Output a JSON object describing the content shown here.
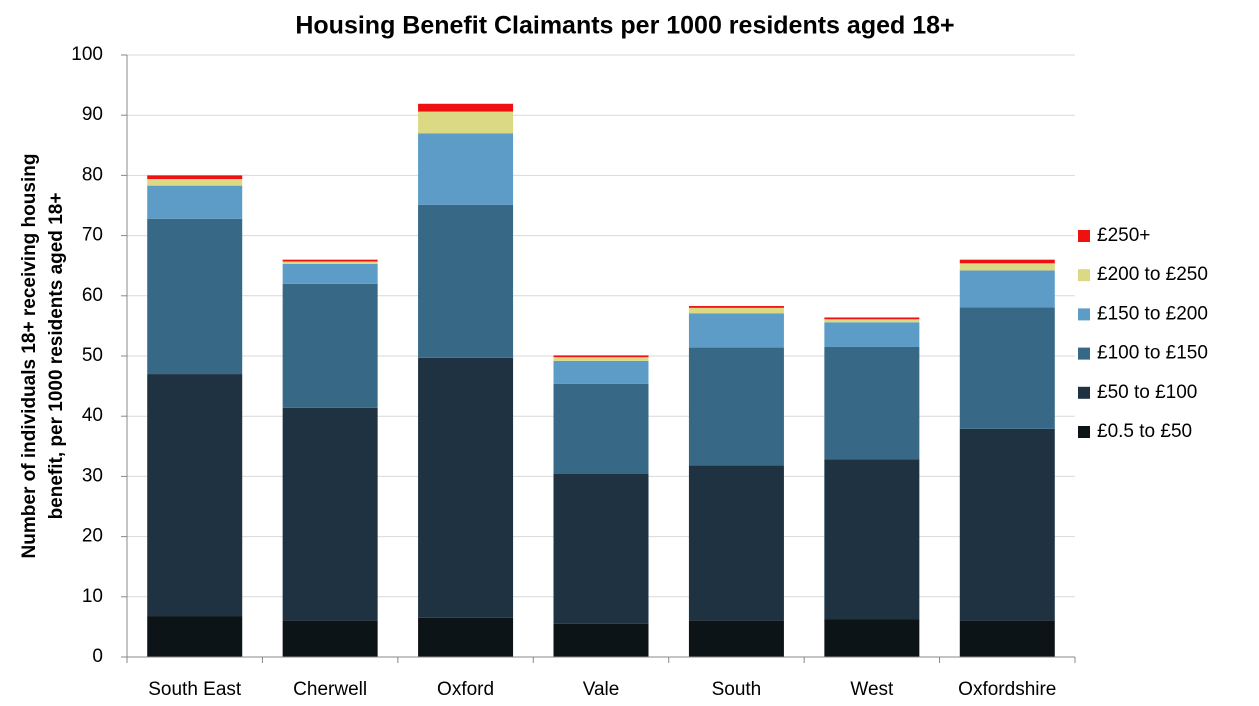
{
  "chart_data": {
    "type": "stacked-bar",
    "title": "Housing Benefit Claimants per 1000  residents  aged 18+",
    "ylabel": [
      "Number of individuals 18+ receiving housing",
      "benefit, per 1000 residents aged 18+"
    ],
    "categories": [
      "South East",
      "Cherwell",
      "Oxford",
      "Vale",
      "South",
      "West",
      "Oxfordshire"
    ],
    "series": [
      {
        "name": "£0.5 to £50",
        "color": "#0d1418",
        "values": [
          6.8,
          6.1,
          6.5,
          5.5,
          6.1,
          6.3,
          6.1
        ]
      },
      {
        "name": "£50 to £100",
        "color": "#1f3242",
        "values": [
          40.2,
          35.3,
          43.2,
          24.9,
          25.7,
          26.5,
          31.8
        ]
      },
      {
        "name": "£100 to £150",
        "color": "#376886",
        "values": [
          25.8,
          20.6,
          25.4,
          15.0,
          19.6,
          18.7,
          20.2
        ]
      },
      {
        "name": "£150 to £200",
        "color": "#5d9cc6",
        "values": [
          5.5,
          3.3,
          11.9,
          3.8,
          5.7,
          4.1,
          6.1
        ]
      },
      {
        "name": "£200 to £250",
        "color": "#dcd984",
        "values": [
          1.1,
          0.4,
          3.6,
          0.6,
          0.9,
          0.5,
          1.2
        ]
      },
      {
        "name": "£250+",
        "color": "#ee1111",
        "values": [
          0.6,
          0.3,
          1.3,
          0.3,
          0.3,
          0.3,
          0.6
        ]
      }
    ],
    "ylim": [
      0,
      100
    ],
    "yticks": [
      0,
      10,
      20,
      30,
      40,
      50,
      60,
      70,
      80,
      90,
      100
    ],
    "grid": true,
    "legend": "right"
  }
}
